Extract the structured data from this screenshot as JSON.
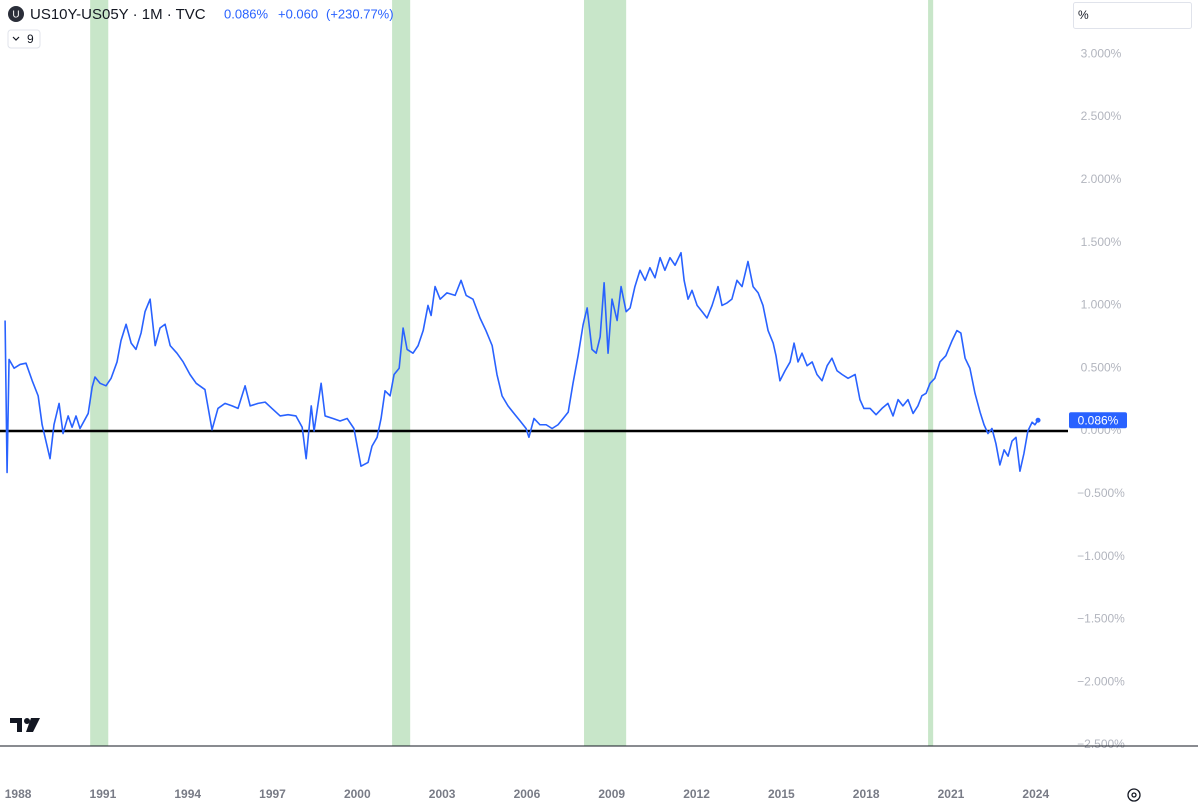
{
  "chart_data": {
    "type": "line",
    "icon_letter": "U",
    "title": "US10Y-US05Y · 1M · TVC",
    "header_value": "0.086%",
    "header_change": "+0.060",
    "header_change_pct": "(+230.77%)",
    "indicator_count": "9",
    "scale_mode": "%",
    "color": "#2962ff",
    "x": [
      1987.54,
      1987.61,
      1987.68,
      1987.86,
      1988.07,
      1988.28,
      1988.5,
      1988.71,
      1988.85,
      1989.13,
      1989.27,
      1989.45,
      1989.59,
      1989.77,
      1989.91,
      1990.05,
      1990.19,
      1990.48,
      1990.62,
      1990.72,
      1990.9,
      1991.11,
      1991.29,
      1991.5,
      1991.64,
      1991.82,
      1992.0,
      1992.17,
      1992.35,
      1992.49,
      1992.67,
      1992.85,
      1993.02,
      1993.2,
      1993.38,
      1993.62,
      1993.84,
      1994.08,
      1994.3,
      1994.61,
      1994.86,
      1995.07,
      1995.32,
      1995.57,
      1995.78,
      1996.03,
      1996.21,
      1996.49,
      1996.74,
      1996.98,
      1997.27,
      1997.55,
      1997.83,
      1998.05,
      1998.19,
      1998.37,
      1998.47,
      1998.72,
      1998.86,
      1999.14,
      1999.39,
      1999.64,
      1999.88,
      2000.13,
      2000.38,
      2000.52,
      2000.7,
      2000.84,
      2000.98,
      2001.16,
      2001.3,
      2001.48,
      2001.62,
      2001.76,
      2001.97,
      2002.15,
      2002.33,
      2002.5,
      2002.61,
      2002.75,
      2002.93,
      2003.17,
      2003.46,
      2003.67,
      2003.85,
      2004.09,
      2004.34,
      2004.55,
      2004.77,
      2004.94,
      2005.12,
      2005.33,
      2005.58,
      2005.76,
      2005.97,
      2006.07,
      2006.25,
      2006.46,
      2006.68,
      2006.89,
      2007.1,
      2007.28,
      2007.46,
      2007.63,
      2007.81,
      2007.99,
      2008.13,
      2008.3,
      2008.45,
      2008.59,
      2008.73,
      2008.87,
      2009.01,
      2009.19,
      2009.33,
      2009.51,
      2009.65,
      2009.82,
      2010.0,
      2010.18,
      2010.35,
      2010.53,
      2010.71,
      2010.88,
      2011.06,
      2011.24,
      2011.45,
      2011.56,
      2011.7,
      2011.84,
      2012.02,
      2012.2,
      2012.37,
      2012.55,
      2012.76,
      2012.9,
      2013.08,
      2013.25,
      2013.43,
      2013.61,
      2013.82,
      2014.0,
      2014.18,
      2014.35,
      2014.53,
      2014.71,
      2014.81,
      2014.95,
      2015.13,
      2015.31,
      2015.45,
      2015.59,
      2015.73,
      2015.91,
      2016.09,
      2016.26,
      2016.44,
      2016.62,
      2016.79,
      2016.97,
      2017.15,
      2017.36,
      2017.61,
      2017.78,
      2017.92,
      2018.14,
      2018.35,
      2018.56,
      2018.77,
      2018.95,
      2019.13,
      2019.3,
      2019.48,
      2019.66,
      2019.83,
      2019.97,
      2020.12,
      2020.26,
      2020.43,
      2020.61,
      2020.82,
      2021.04,
      2021.21,
      2021.35,
      2021.5,
      2021.67,
      2021.85,
      2022.03,
      2022.17,
      2022.31,
      2022.45,
      2022.59,
      2022.73,
      2022.88,
      2023.02,
      2023.16,
      2023.3,
      2023.44,
      2023.58,
      2023.72,
      2023.87,
      2023.97,
      2024.08
    ],
    "values": [
      0.88,
      -0.33,
      0.57,
      0.5,
      0.53,
      0.54,
      0.4,
      0.28,
      0.05,
      -0.22,
      0.05,
      0.22,
      -0.02,
      0.12,
      0.03,
      0.12,
      0.02,
      0.14,
      0.35,
      0.43,
      0.38,
      0.36,
      0.42,
      0.55,
      0.72,
      0.85,
      0.7,
      0.65,
      0.78,
      0.95,
      1.05,
      0.68,
      0.82,
      0.85,
      0.68,
      0.62,
      0.55,
      0.45,
      0.38,
      0.33,
      0.01,
      0.18,
      0.22,
      0.2,
      0.18,
      0.36,
      0.2,
      0.22,
      0.23,
      0.18,
      0.12,
      0.13,
      0.12,
      0.03,
      -0.22,
      0.2,
      0.0,
      0.38,
      0.12,
      0.1,
      0.08,
      0.1,
      0.02,
      -0.28,
      -0.25,
      -0.12,
      -0.05,
      0.1,
      0.32,
      0.28,
      0.45,
      0.5,
      0.82,
      0.65,
      0.62,
      0.68,
      0.8,
      1.0,
      0.92,
      1.15,
      1.05,
      1.1,
      1.08,
      1.2,
      1.08,
      1.05,
      0.9,
      0.8,
      0.68,
      0.45,
      0.28,
      0.2,
      0.13,
      0.08,
      0.02,
      -0.05,
      0.1,
      0.05,
      0.05,
      0.02,
      0.05,
      0.1,
      0.15,
      0.38,
      0.6,
      0.85,
      0.98,
      0.65,
      0.62,
      0.75,
      1.18,
      0.62,
      1.05,
      0.88,
      1.15,
      0.95,
      0.98,
      1.15,
      1.28,
      1.2,
      1.3,
      1.22,
      1.38,
      1.28,
      1.38,
      1.32,
      1.42,
      1.2,
      1.05,
      1.12,
      1.0,
      0.95,
      0.9,
      1.0,
      1.15,
      1.0,
      1.02,
      1.05,
      1.2,
      1.15,
      1.35,
      1.15,
      1.1,
      1.0,
      0.8,
      0.7,
      0.6,
      0.4,
      0.48,
      0.55,
      0.7,
      0.55,
      0.62,
      0.52,
      0.55,
      0.45,
      0.4,
      0.52,
      0.58,
      0.48,
      0.45,
      0.42,
      0.45,
      0.25,
      0.18,
      0.18,
      0.13,
      0.18,
      0.22,
      0.12,
      0.25,
      0.2,
      0.25,
      0.14,
      0.2,
      0.28,
      0.3,
      0.38,
      0.42,
      0.55,
      0.6,
      0.72,
      0.8,
      0.78,
      0.58,
      0.5,
      0.3,
      0.15,
      0.05,
      -0.02,
      0.02,
      -0.1,
      -0.27,
      -0.15,
      -0.2,
      -0.08,
      -0.05,
      -0.32,
      -0.18,
      0.0,
      0.07,
      0.05,
      0.086
    ],
    "last_label": {
      "value": 0.086,
      "label": "0.086%"
    },
    "bands": [
      [
        1990.55,
        1991.19
      ],
      [
        2001.23,
        2001.87
      ],
      [
        2008.02,
        2009.51
      ],
      [
        2020.19,
        2020.37
      ]
    ],
    "band_color": "#c8e6c9",
    "hline": 0,
    "hline_color": "#000000",
    "xlim": [
      1987.36,
      2025.14
    ],
    "xticks": [
      1988,
      1991,
      1994,
      1997,
      2000,
      2003,
      2006,
      2009,
      2012,
      2015,
      2018,
      2021,
      2024
    ],
    "ylim": [
      -2.508,
      3.432
    ],
    "yticks": [
      {
        "value": 3,
        "label": "3.000%"
      },
      {
        "value": 2.5,
        "label": "2.500%"
      },
      {
        "value": 2,
        "label": "2.000%"
      },
      {
        "value": 1.5,
        "label": "1.500%"
      },
      {
        "value": 1,
        "label": "1.000%"
      },
      {
        "value": 0.5,
        "label": "0.500%"
      },
      {
        "value": 0,
        "label": "0.000%"
      },
      {
        "value": -0.5,
        "label": "−0.500%"
      },
      {
        "value": -1,
        "label": "−1.000%"
      },
      {
        "value": -1.5,
        "label": "−1.500%"
      },
      {
        "value": -2,
        "label": "−2.000%"
      },
      {
        "value": -2.5,
        "label": "−2.500%"
      }
    ]
  }
}
